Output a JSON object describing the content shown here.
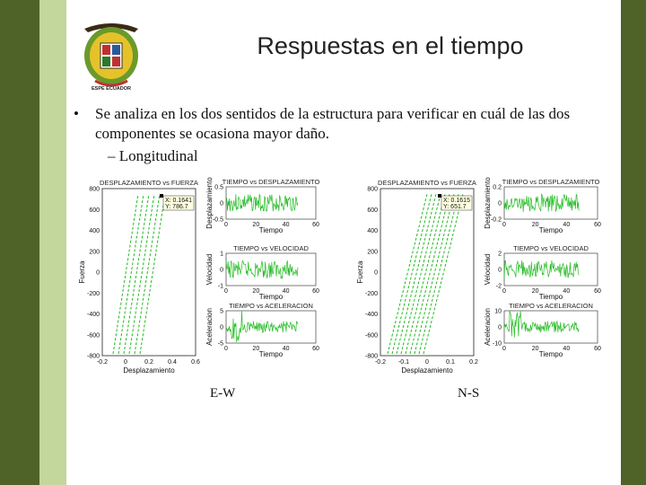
{
  "slide": {
    "title": "Respuestas en el tiempo",
    "bullet": "Se analiza en los dos sentidos de la estructura para verificar en cuál de las dos componentes se ocasiona mayor daño.",
    "sub_bullet": "– Longitudinal",
    "logo_text": "ESPE ECUADOR",
    "caption_left": "E-W",
    "caption_right": "N-S"
  },
  "colors": {
    "frame_dark": "#4f6228",
    "frame_light": "#c3d69b",
    "trace": "#22bb22"
  },
  "figures": [
    {
      "main": {
        "title": "DESPLAZAMIENTO vs FUERZA",
        "xlabel": "Desplazamiento",
        "ylabel": "Fuerza",
        "xticks": [
          "-0.2",
          "0",
          "0.2",
          "0.4",
          "0.6"
        ],
        "yticks": [
          "800",
          "600",
          "400",
          "200",
          "0",
          "-200",
          "-400",
          "-600",
          "-800"
        ],
        "datatip_x": "X: 0.1641",
        "datatip_y": "Y: 786.7"
      },
      "panels": [
        {
          "title": "TIEMPO vs DESPLAZAMIENTO",
          "ylabel": "Desplazamiento",
          "yticks": [
            "0.5",
            "0",
            "-0.5"
          ],
          "xticks": [
            "0",
            "20",
            "40",
            "60"
          ],
          "xlabel": "Tiempo"
        },
        {
          "title": "TIEMPO vs VELOCIDAD",
          "ylabel": "Velocidad",
          "yticks": [
            "1",
            "0",
            "-1"
          ],
          "xticks": [
            "0",
            "20",
            "40",
            "60"
          ],
          "xlabel": "Tiempo"
        },
        {
          "title": "TIEMPO vs ACELERACION",
          "ylabel": "Aceleracion",
          "yticks": [
            "5",
            "0",
            "-5"
          ],
          "xticks": [
            "0",
            "20",
            "40",
            "60"
          ],
          "xlabel": "Tiempo"
        }
      ]
    },
    {
      "main": {
        "title": "DESPLAZAMIENTO vs FUERZA",
        "xlabel": "Desplazamiento",
        "ylabel": "Fuerza",
        "xticks": [
          "-0.2",
          "-0.1",
          "0",
          "0.1",
          "0.2"
        ],
        "yticks": [
          "800",
          "600",
          "400",
          "200",
          "0",
          "-200",
          "-400",
          "-600",
          "-800"
        ],
        "datatip_x": "X: 0.1615",
        "datatip_y": "Y: 651.7"
      },
      "panels": [
        {
          "title": "TIEMPO vs DESPLAZAMIENTO",
          "ylabel": "Desplazamiento",
          "yticks": [
            "0.2",
            "0",
            "-0.2"
          ],
          "xticks": [
            "0",
            "20",
            "40",
            "60"
          ],
          "xlabel": "Tiempo"
        },
        {
          "title": "TIEMPO vs VELOCIDAD",
          "ylabel": "Velocidad",
          "yticks": [
            "2",
            "0",
            "-2"
          ],
          "xticks": [
            "0",
            "20",
            "40",
            "60"
          ],
          "xlabel": "Tiempo"
        },
        {
          "title": "TIEMPO vs ACELERACION",
          "ylabel": "Aceleracion",
          "yticks": [
            "10",
            "0",
            "-10"
          ],
          "xticks": [
            "0",
            "20",
            "40",
            "60"
          ],
          "xlabel": "Tiempo"
        }
      ]
    }
  ]
}
